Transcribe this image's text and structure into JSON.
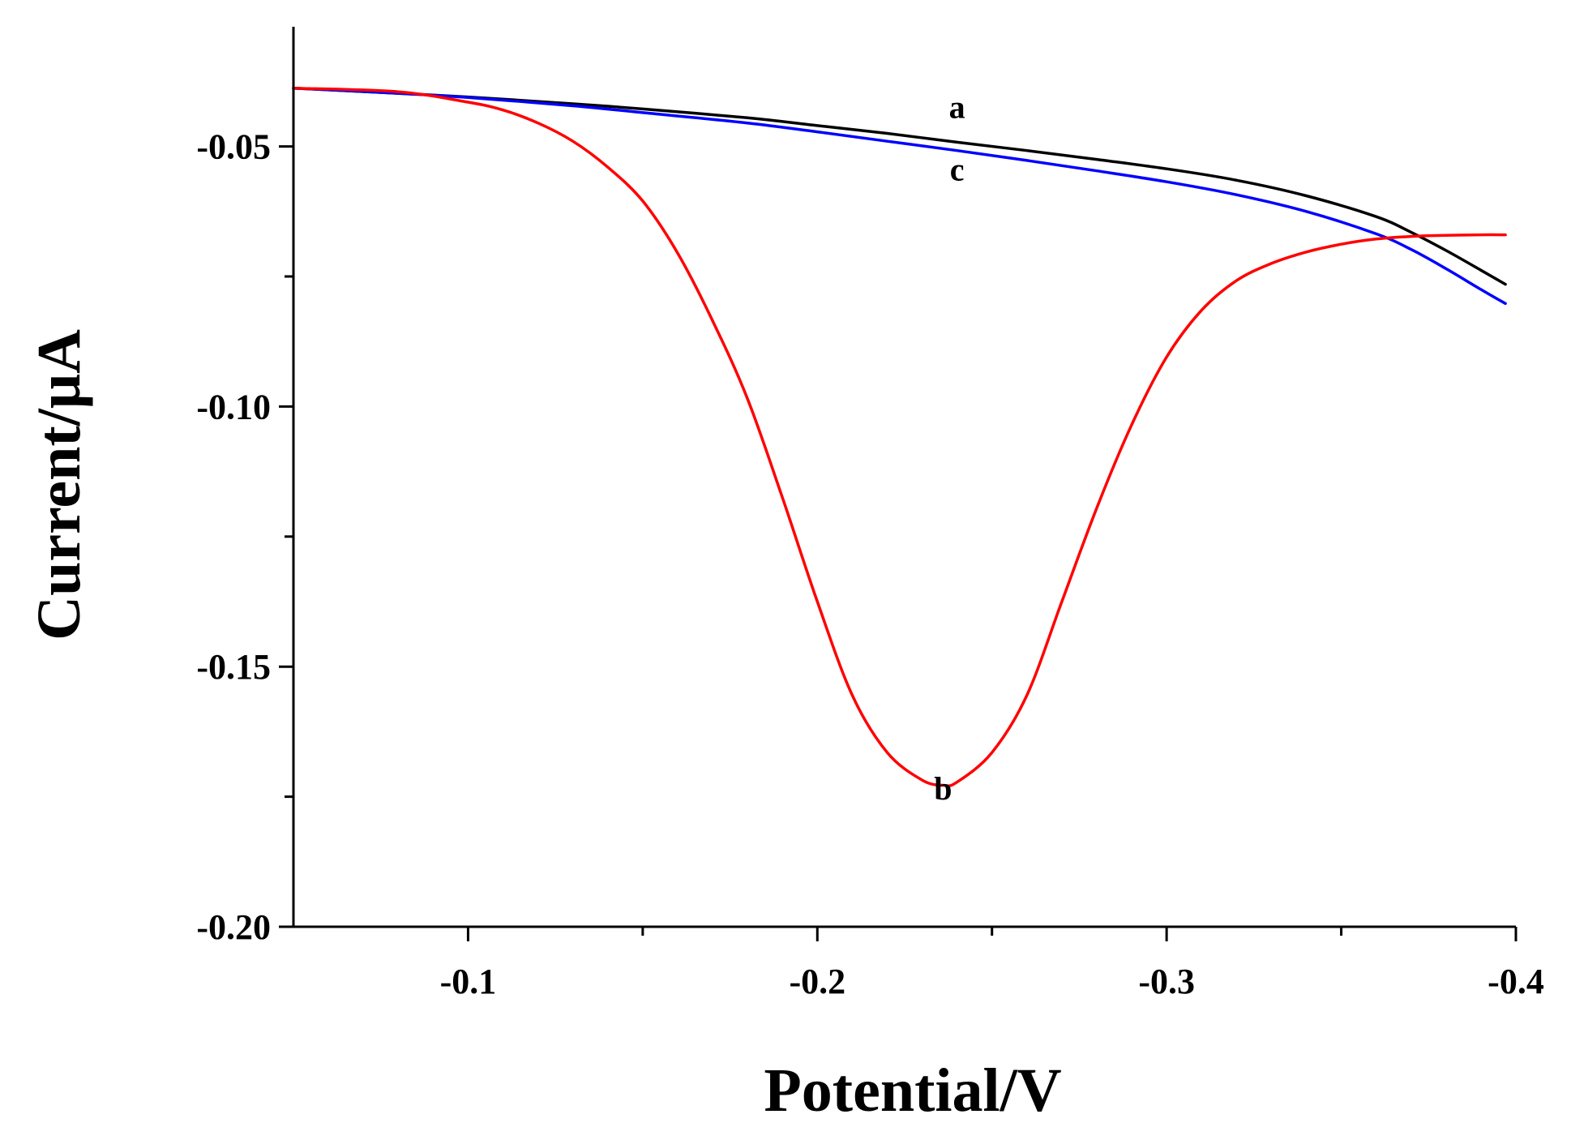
{
  "chart_data": {
    "type": "line",
    "title": "",
    "xlabel": "Potential/V",
    "ylabel": "Current/μA",
    "xlim": [
      -0.05,
      -0.4
    ],
    "ylim": [
      -0.2,
      -0.027
    ],
    "xticks": [
      {
        "value": -0.1,
        "label": "-0.1"
      },
      {
        "value": -0.2,
        "label": "-0.2"
      },
      {
        "value": -0.3,
        "label": "-0.3"
      },
      {
        "value": -0.4,
        "label": "-0.4"
      }
    ],
    "xminor": [
      -0.15,
      -0.25,
      -0.35
    ],
    "yticks": [
      {
        "value": -0.05,
        "label": "-0.05"
      },
      {
        "value": -0.1,
        "label": "-0.10"
      },
      {
        "value": -0.15,
        "label": "-0.15"
      },
      {
        "value": -0.2,
        "label": "-0.20"
      }
    ],
    "yminor": [
      -0.075,
      -0.125,
      -0.175
    ],
    "grid": false,
    "series": [
      {
        "name": "a",
        "color": "#000000",
        "label_at": [
          -0.24,
          -0.0445
        ],
        "x": [
          -0.05,
          -0.08,
          -0.1,
          -0.13,
          -0.15,
          -0.18,
          -0.2,
          -0.22,
          -0.24,
          -0.26,
          -0.28,
          -0.3,
          -0.32,
          -0.34,
          -0.36,
          -0.37,
          -0.38,
          -0.39,
          -0.397
        ],
        "y": [
          -0.0388,
          -0.0398,
          -0.0405,
          -0.0418,
          -0.0428,
          -0.0445,
          -0.046,
          -0.0475,
          -0.0492,
          -0.0508,
          -0.0525,
          -0.0543,
          -0.0565,
          -0.0595,
          -0.0635,
          -0.0665,
          -0.07,
          -0.0738,
          -0.0765
        ]
      },
      {
        "name": "c",
        "color": "#0000ff",
        "label_at": [
          -0.24,
          -0.0565
        ],
        "x": [
          -0.05,
          -0.08,
          -0.1,
          -0.13,
          -0.15,
          -0.18,
          -0.2,
          -0.22,
          -0.24,
          -0.26,
          -0.28,
          -0.3,
          -0.32,
          -0.34,
          -0.36,
          -0.37,
          -0.38,
          -0.39,
          -0.397
        ],
        "y": [
          -0.0388,
          -0.0398,
          -0.0406,
          -0.0422,
          -0.0435,
          -0.0455,
          -0.0472,
          -0.049,
          -0.0508,
          -0.0527,
          -0.0547,
          -0.0568,
          -0.0593,
          -0.0625,
          -0.0668,
          -0.0698,
          -0.0735,
          -0.0775,
          -0.0802
        ]
      },
      {
        "name": "b",
        "color": "#ff0000",
        "label_at": [
          -0.236,
          -0.1755
        ],
        "x": [
          -0.05,
          -0.08,
          -0.1,
          -0.11,
          -0.12,
          -0.13,
          -0.14,
          -0.15,
          -0.16,
          -0.17,
          -0.18,
          -0.19,
          -0.2,
          -0.21,
          -0.22,
          -0.23,
          -0.236,
          -0.24,
          -0.25,
          -0.26,
          -0.27,
          -0.28,
          -0.29,
          -0.3,
          -0.31,
          -0.32,
          -0.33,
          -0.34,
          -0.35,
          -0.36,
          -0.37,
          -0.38,
          -0.39,
          -0.397
        ],
        "y": [
          -0.0388,
          -0.0395,
          -0.0415,
          -0.043,
          -0.0455,
          -0.049,
          -0.054,
          -0.0605,
          -0.0705,
          -0.0835,
          -0.0985,
          -0.1175,
          -0.1375,
          -0.1555,
          -0.1665,
          -0.1718,
          -0.1728,
          -0.1722,
          -0.1665,
          -0.1555,
          -0.1375,
          -0.1195,
          -0.1035,
          -0.0905,
          -0.0815,
          -0.0758,
          -0.0725,
          -0.0703,
          -0.0688,
          -0.0678,
          -0.0673,
          -0.0671,
          -0.067,
          -0.067
        ]
      }
    ]
  }
}
